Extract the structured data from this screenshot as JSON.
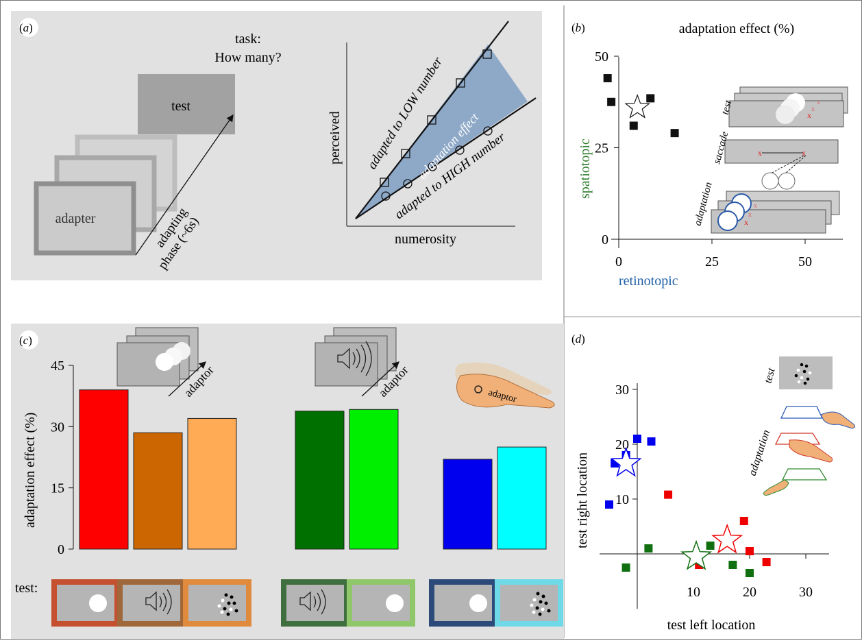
{
  "panel_a": {
    "label_letter": "a",
    "task_line1": "task:",
    "task_line2": "How many?",
    "test_label": "test",
    "adapter_label": "adapter",
    "phase_line1": "adapting",
    "phase_line2": "phase (~6s)",
    "xlabel": "numerosity",
    "ylabel": "perceived",
    "line_low": "adapted to LOW number",
    "line_high": "adapted to HIGH number",
    "region_label": "adaptation effect"
  },
  "panel_b": {
    "label_letter": "b",
    "title": "adaptation effect (%)",
    "xlabel": "retinotopic",
    "ylabel": "spatiotopic",
    "xlabel_color": "#1f5fa6",
    "ylabel_color": "#2e7d2e",
    "test_label": "test",
    "saccade_label": "saccade",
    "adaptation_label": "adaptation",
    "x_mark": "x"
  },
  "panel_c": {
    "label_letter": "c",
    "ylabel": "adaptation effect (%)",
    "adaptor_label": "adaptor",
    "hand_label": "adaptor",
    "test_label": "test:"
  },
  "panel_d": {
    "label_letter": "d",
    "xlabel": "test left location",
    "ylabel": "test right location",
    "test_label": "test",
    "adaptation_label": "adaptation"
  },
  "chart_data": [
    {
      "type": "bar",
      "panel": "c",
      "ylabel": "adaptation effect (%)",
      "ylim": [
        0,
        45
      ],
      "yticks": [
        0,
        15,
        30,
        45
      ],
      "groups": [
        {
          "colors": [
            "#ff0000",
            "#cc6600",
            "#ffaa55"
          ],
          "values": [
            39,
            28.5,
            32
          ]
        },
        {
          "colors": [
            "#007000",
            "#00ee00"
          ],
          "values": [
            33.8,
            34.2
          ]
        },
        {
          "colors": [
            "#0000ee",
            "#00ffff"
          ],
          "values": [
            22,
            25
          ]
        }
      ]
    },
    {
      "type": "scatter",
      "panel": "b",
      "title": "adaptation effect (%)",
      "xlabel": "retinotopic",
      "ylabel": "spatiotopic",
      "xlim": [
        -3,
        60
      ],
      "ylim": [
        0,
        50
      ],
      "xticks": [
        0,
        25,
        50
      ],
      "yticks": [
        0,
        25,
        50
      ],
      "points": [
        [
          -3,
          44
        ],
        [
          -2,
          37.5
        ],
        [
          4,
          31
        ],
        [
          8.5,
          38.5
        ],
        [
          15,
          29
        ]
      ],
      "mean": [
        5,
        36
      ]
    },
    {
      "type": "scatter",
      "panel": "d",
      "xlabel": "test left location",
      "ylabel": "test right location",
      "xlim": [
        -7,
        30
      ],
      "ylim": [
        -5,
        30
      ],
      "xticks": [
        10,
        20,
        30
      ],
      "yticks": [
        10,
        20,
        30
      ],
      "series": [
        {
          "color": "#0000ee",
          "points": [
            [
              -5,
              9
            ],
            [
              -4,
              16.5
            ],
            [
              -2,
              18
            ],
            [
              0,
              21
            ],
            [
              2.5,
              20.5
            ]
          ],
          "mean": [
            -2,
            16.5
          ]
        },
        {
          "color": "#ee0000",
          "points": [
            [
              5.5,
              10.8
            ],
            [
              11,
              -2
            ],
            [
              19,
              6
            ],
            [
              20,
              0.5
            ],
            [
              23,
              -1.5
            ]
          ],
          "mean": [
            16,
            2.5
          ]
        },
        {
          "color": "#107010",
          "points": [
            [
              -2,
              -2.5
            ],
            [
              2,
              1
            ],
            [
              13,
              1.5
            ],
            [
              17,
              -2
            ],
            [
              20,
              -3.5
            ]
          ],
          "mean": [
            10.5,
            -0.5
          ]
        }
      ]
    }
  ]
}
